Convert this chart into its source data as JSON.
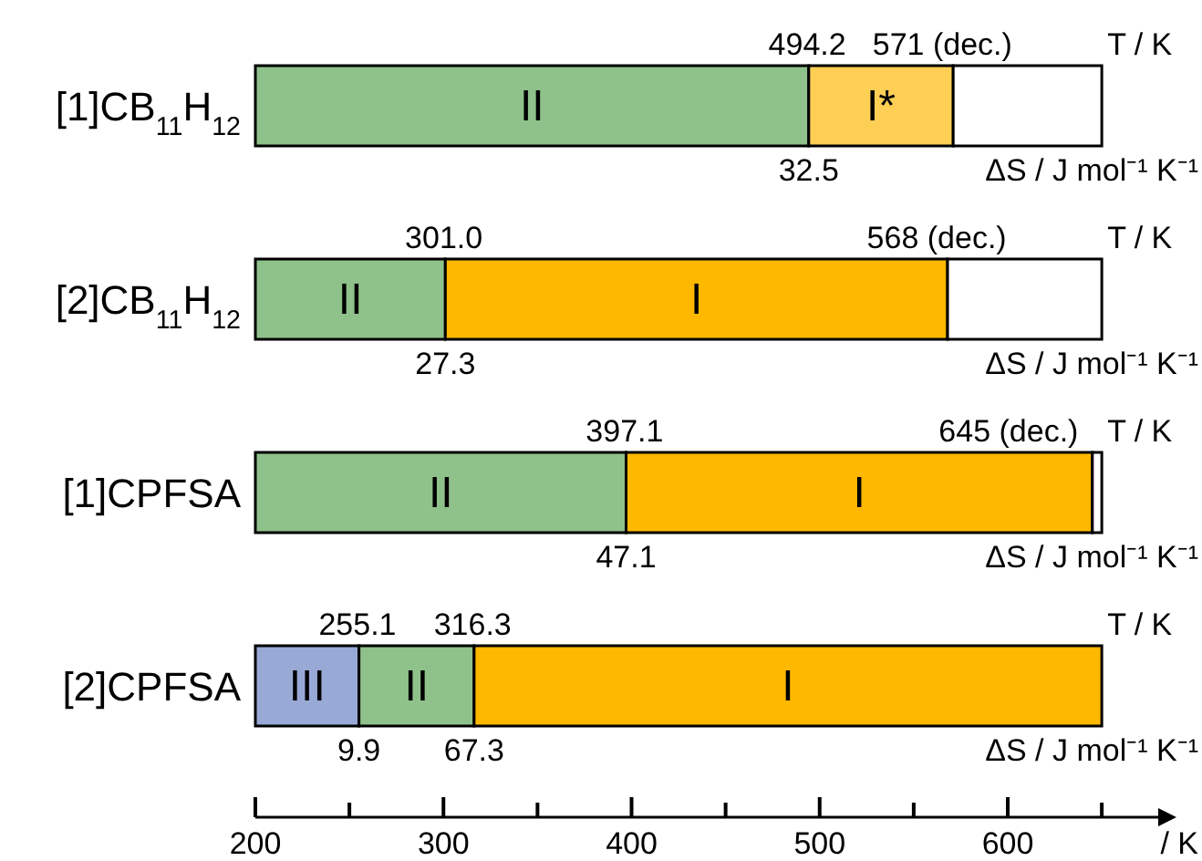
{
  "chart_data": {
    "type": "bar",
    "orientation": "horizontal",
    "categories": [
      "[1]CB$_{11}$H$_{12}$",
      "[2]CB$_{11}$H$_{12}$",
      "[1]CPFSA",
      "[2]CPFSA"
    ],
    "series": [
      {
        "name": "III",
        "color": "#98a9d6",
        "base": [
          null,
          null,
          null,
          200
        ],
        "values": [
          null,
          null,
          null,
          55.1
        ]
      },
      {
        "name": "II",
        "color": "#8fc18a",
        "base": [
          200,
          200,
          200,
          255.1
        ],
        "values": [
          294.2,
          101.0,
          197.1,
          61.2
        ]
      },
      {
        "name": "I",
        "color": "#ffb800",
        "base": [
          null,
          301.0,
          397.1,
          316.3
        ],
        "values": [
          null,
          267.0,
          247.9,
          333.7
        ]
      },
      {
        "name": "I*",
        "color": "#ffcf55",
        "base": [
          494.2,
          null,
          null,
          null
        ],
        "values": [
          76.8,
          null,
          null,
          null
        ]
      },
      {
        "color": "#ffffff",
        "base": [
          571,
          568,
          645,
          null
        ],
        "values": [
          79,
          82,
          5,
          null
        ]
      }
    ],
    "xlim": [
      200,
      680
    ],
    "xticks": [
      200,
      {
        "value": 250,
        "label": null
      },
      300,
      {
        "value": 350,
        "label": null
      },
      400,
      {
        "value": 450,
        "label": null
      },
      500,
      {
        "value": 550,
        "label": null
      },
      600,
      {
        "value": 650,
        "label": null
      }
    ],
    "xlabel": "/ K",
    "annotations": [
      {
        "text": "494.2",
        "x": 494.2,
        "y": "[1]CB$_{11}$H$_{12}$"
      },
      {
        "text": "32.5",
        "x": 494.2,
        "y": "[1]CB$_{11}$H$_{12}$"
      },
      {
        "text": "571 (dec.)",
        "x": 571,
        "y": "[1]CB$_{11}$H$_{12}$"
      },
      {
        "text": "T / K",
        "x": 650,
        "y": "[1]CB$_{11}$H$_{12}$"
      },
      {
        "text": "ΔS / J mol⁻¹ K⁻¹",
        "x": 650,
        "y": "[1]CB$_{11}$H$_{12}$"
      },
      {
        "text": "301.0",
        "x": 301.0,
        "y": "[2]CB$_{11}$H$_{12}$"
      },
      {
        "text": "27.3",
        "x": 301.0,
        "y": "[2]CB$_{11}$H$_{12}$"
      },
      {
        "text": "568 (dec.)",
        "x": 568,
        "y": "[2]CB$_{11}$H$_{12}$"
      },
      {
        "text": "T / K",
        "x": 650,
        "y": "[2]CB$_{11}$H$_{12}$"
      },
      {
        "text": "ΔS / J mol⁻¹ K⁻¹",
        "x": 650,
        "y": "[2]CB$_{11}$H$_{12}$"
      },
      {
        "text": "397.1",
        "x": 397.1,
        "y": "[1]CPFSA"
      },
      {
        "text": "47.1",
        "x": 397.1,
        "y": "[1]CPFSA"
      },
      {
        "text": "645 (dec.)",
        "x": 645,
        "y": "[1]CPFSA"
      },
      {
        "text": "T / K",
        "x": 650,
        "y": "[1]CPFSA"
      },
      {
        "text": "ΔS / J mol⁻¹ K⁻¹",
        "x": 650,
        "y": "[1]CPFSA"
      },
      {
        "text": "255.1",
        "x": 255.1,
        "y": "[2]CPFSA"
      },
      {
        "text": "9.9",
        "x": 255.1,
        "y": "[2]CPFSA"
      },
      {
        "text": "316.3",
        "x": 316.3,
        "y": "[2]CPFSA"
      },
      {
        "text": "67.3",
        "x": 316.3,
        "y": "[2]CPFSA"
      },
      {
        "text": "T / K",
        "x": 650,
        "y": "[2]CPFSA"
      },
      {
        "text": "ΔS / J mol⁻¹ K⁻¹",
        "x": 650,
        "y": "[2]CPFSA"
      }
    ]
  }
}
